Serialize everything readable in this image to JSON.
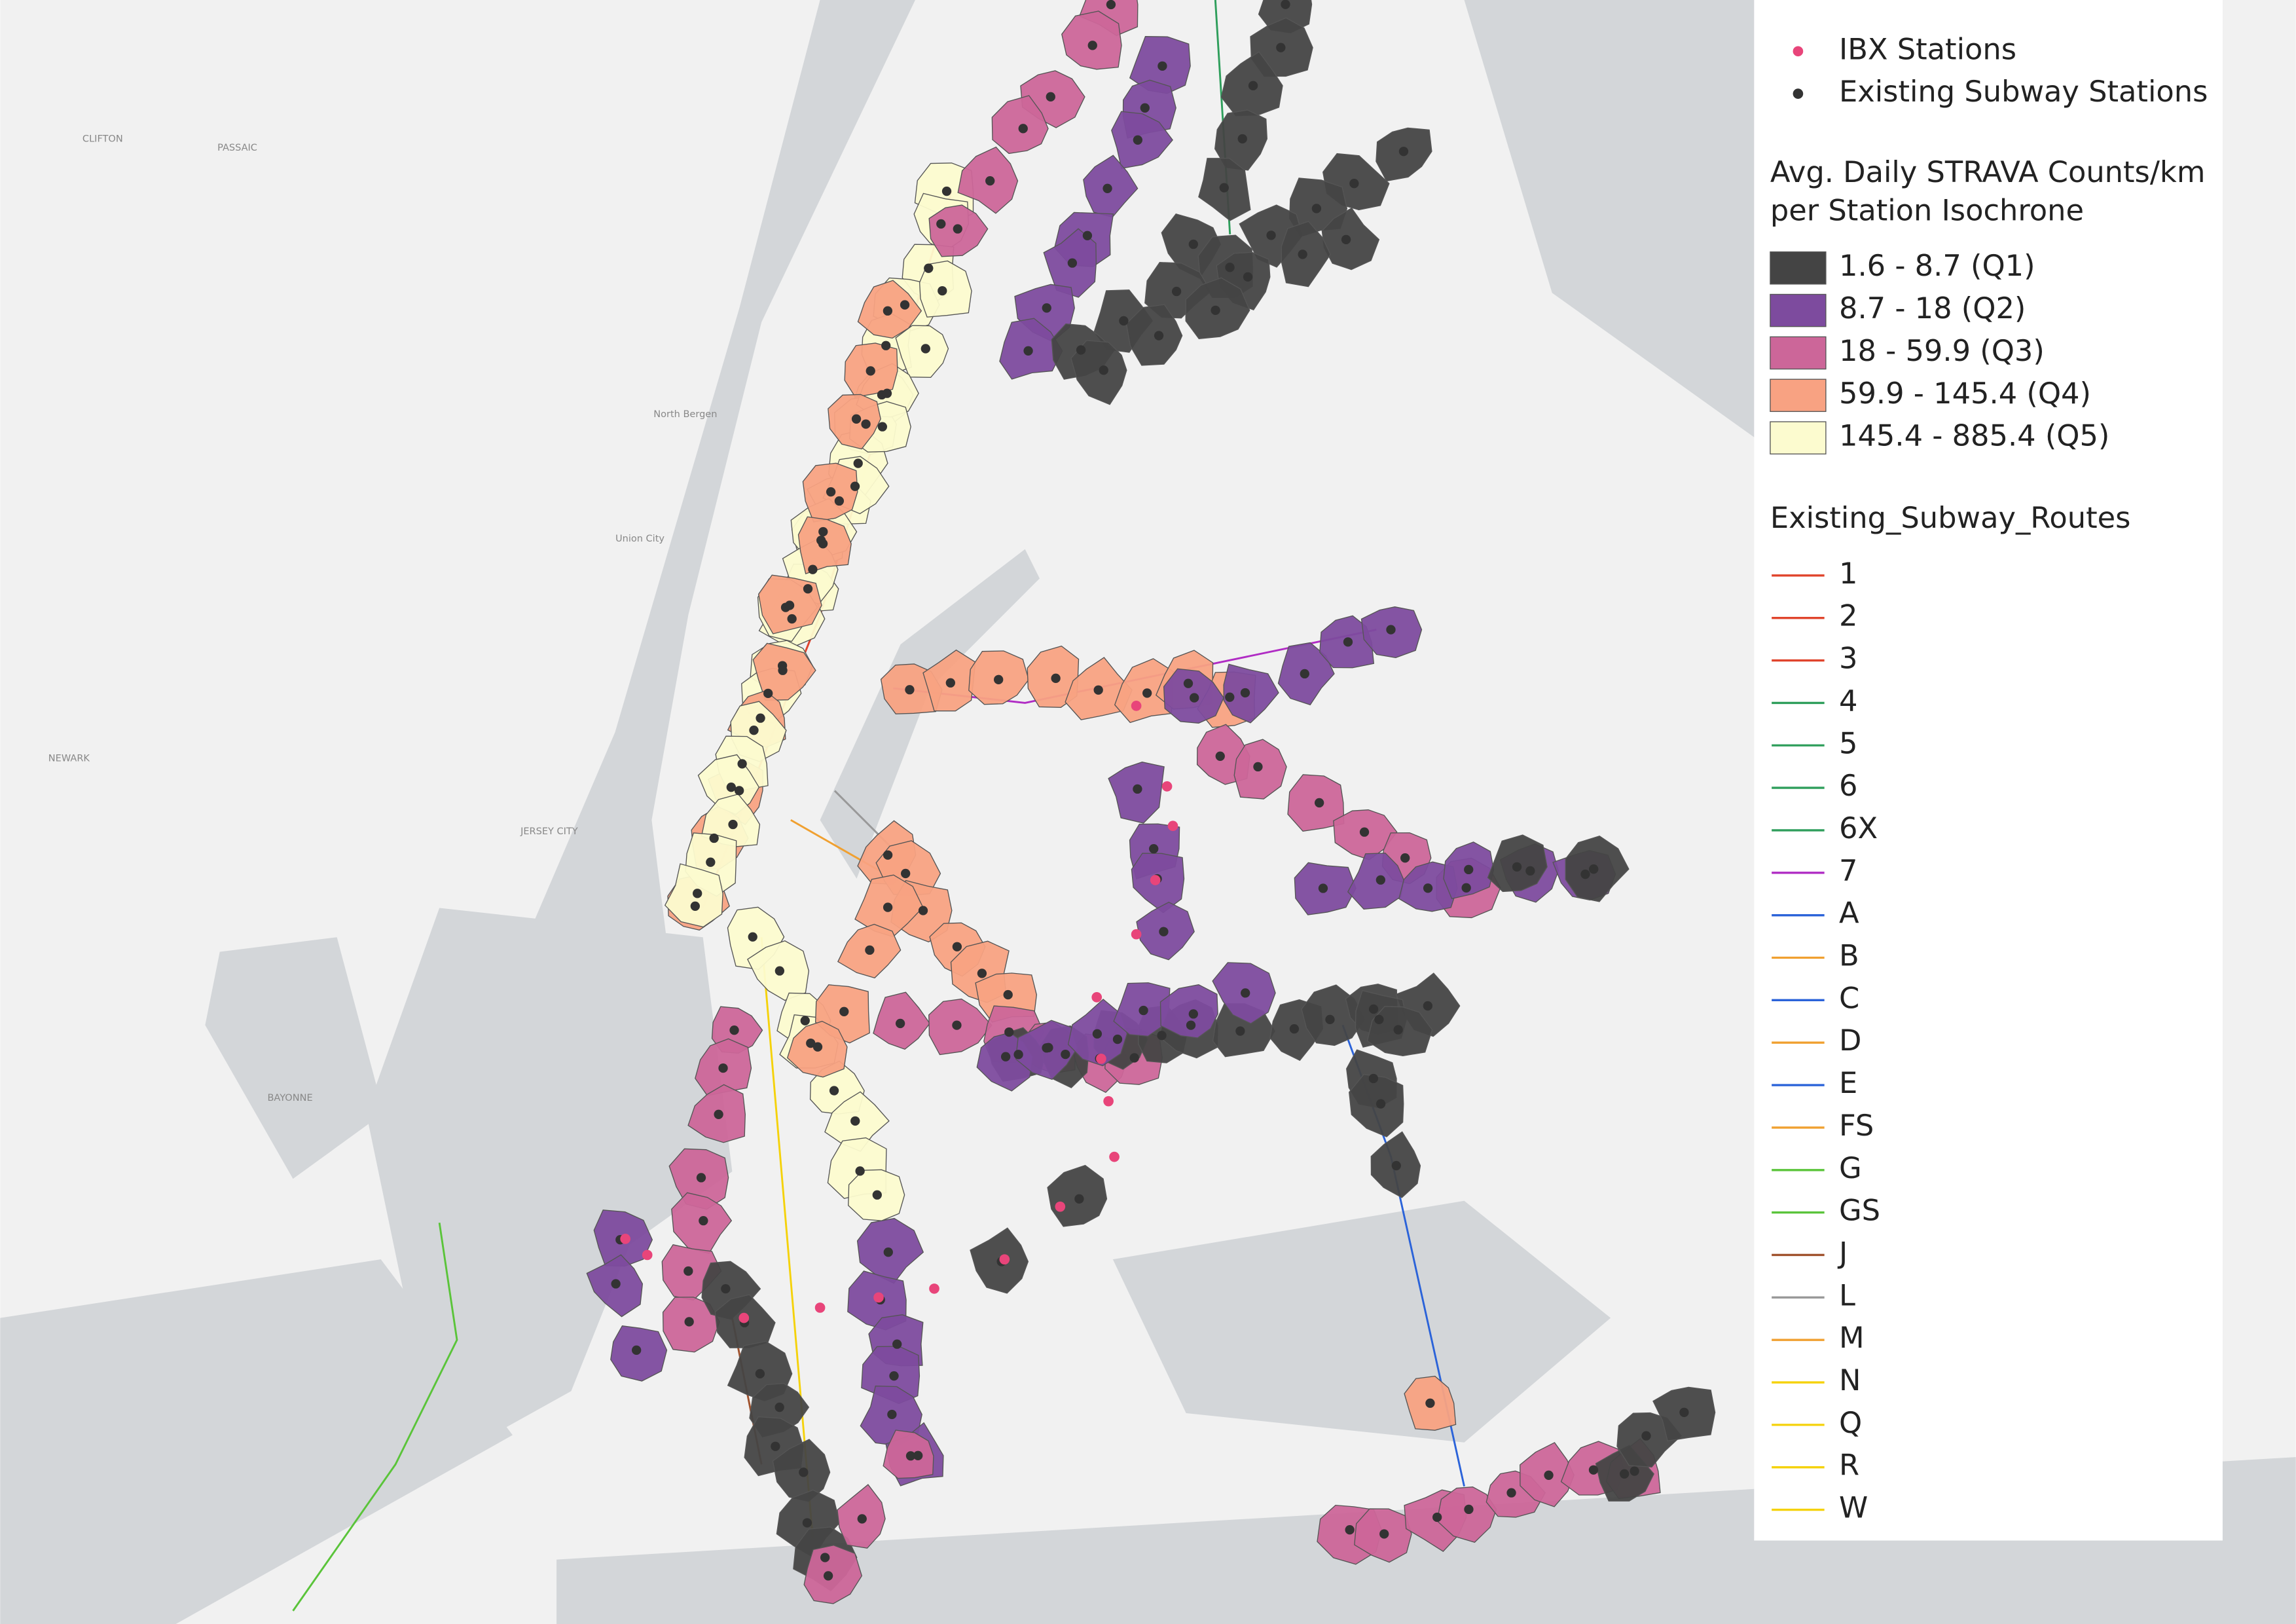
{
  "map_labels": [
    "CLIFTON",
    "PASSAIC",
    "NEWARK",
    "JERSEY CITY",
    "BAYONNE",
    "North Bergen",
    "Union City"
  ],
  "legend": {
    "point_layers": [
      {
        "label": "IBX Stations",
        "color": "#e8457a"
      },
      {
        "label": "Existing Subway Stations",
        "color": "#333333"
      }
    ],
    "choropleth": {
      "title_lines": [
        "Avg. Daily STRAVA Counts/km",
        "per Station Isochrone"
      ],
      "classes": [
        {
          "label": "1.6 - 8.7 (Q1)",
          "color": "#444444"
        },
        {
          "label": "8.7 - 18 (Q2)",
          "color": "#7d4b9e"
        },
        {
          "label": "18 - 59.9 (Q3)",
          "color": "#cc6699"
        },
        {
          "label": "59.9 - 145.4 (Q4)",
          "color": "#f8a282"
        },
        {
          "label": "145.4 - 885.4 (Q5)",
          "color": "#fcfbcf"
        }
      ]
    },
    "routes": {
      "title": "Existing_Subway_Routes",
      "items": [
        {
          "label": "1",
          "color": "#e0442c"
        },
        {
          "label": "2",
          "color": "#e0442c"
        },
        {
          "label": "3",
          "color": "#e0442c"
        },
        {
          "label": "4",
          "color": "#2e9e5b"
        },
        {
          "label": "5",
          "color": "#2e9e5b"
        },
        {
          "label": "6",
          "color": "#2e9e5b"
        },
        {
          "label": "6X",
          "color": "#2e9e5b"
        },
        {
          "label": "7",
          "color": "#b02cc4"
        },
        {
          "label": "A",
          "color": "#2b63d9"
        },
        {
          "label": "B",
          "color": "#f0a030"
        },
        {
          "label": "C",
          "color": "#2b63d9"
        },
        {
          "label": "D",
          "color": "#f0a030"
        },
        {
          "label": "E",
          "color": "#2b63d9"
        },
        {
          "label": "FS",
          "color": "#f0a030"
        },
        {
          "label": "G",
          "color": "#5ac43a"
        },
        {
          "label": "GS",
          "color": "#5ac43a"
        },
        {
          "label": "J",
          "color": "#a0522d"
        },
        {
          "label": "L",
          "color": "#999999"
        },
        {
          "label": "M",
          "color": "#f0a030"
        },
        {
          "label": "N",
          "color": "#f5d20a"
        },
        {
          "label": "Q",
          "color": "#f5d20a"
        },
        {
          "label": "R",
          "color": "#f5d20a"
        },
        {
          "label": "W",
          "color": "#f5d20a"
        }
      ]
    }
  }
}
